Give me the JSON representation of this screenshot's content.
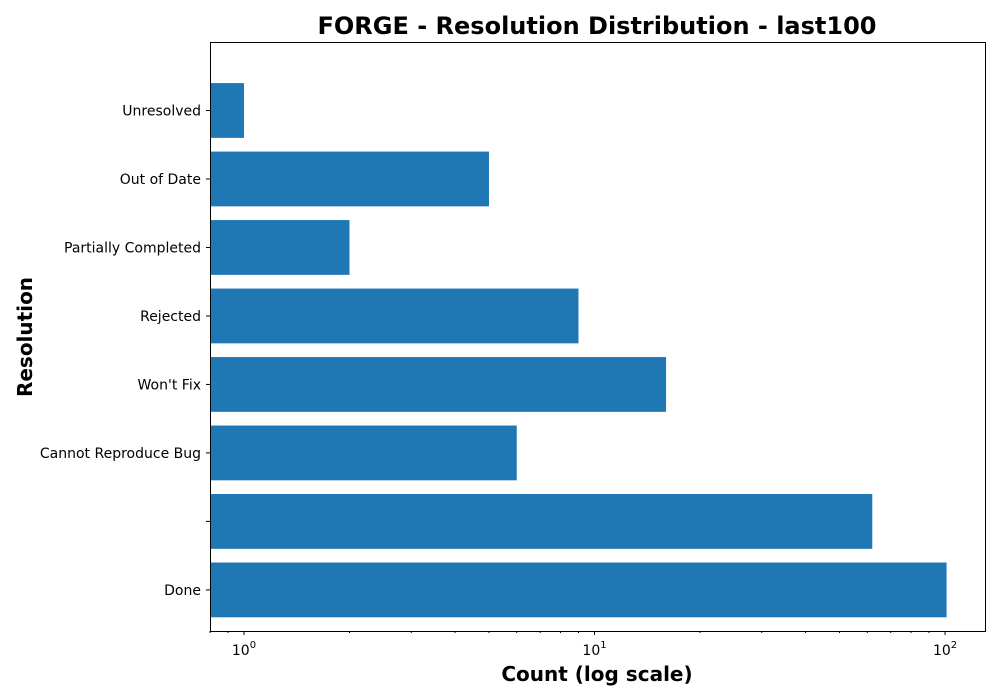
{
  "chart_data": {
    "type": "bar",
    "orientation": "horizontal",
    "title": "FORGE - Resolution Distribution - last100",
    "xlabel": "Count (log scale)",
    "ylabel": "Resolution",
    "x_scale": "log",
    "xlim": [
      0.8,
      130
    ],
    "x_ticks": [
      {
        "base": "10",
        "exp": "0",
        "value": 1
      },
      {
        "base": "10",
        "exp": "1",
        "value": 10
      },
      {
        "base": "10",
        "exp": "2",
        "value": 100
      }
    ],
    "categories": [
      "Done",
      "",
      "Cannot Reproduce Bug",
      "Won't Fix",
      "Rejected",
      "Partially Completed",
      "Out of Date",
      "Unresolved"
    ],
    "values": [
      101,
      62,
      6,
      16,
      9,
      2,
      5,
      1
    ],
    "bar_color": "#1f77b4",
    "grid": false
  }
}
